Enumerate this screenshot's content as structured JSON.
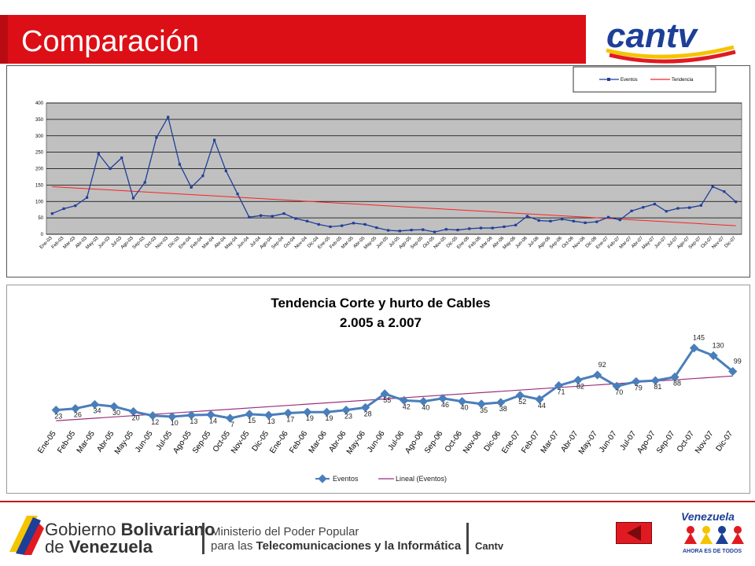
{
  "header": {
    "title": "Comparación",
    "logo_text": "cantv"
  },
  "colors": {
    "header_red": "#dd0f16",
    "plot_gray": "#c0c0c0",
    "series_blue": "#1f3f99",
    "trend_red": "#ff2020",
    "series2_blue": "#4a7ebb",
    "trend2_purple": "#9b2f7a"
  },
  "chart_data": [
    {
      "type": "line",
      "title": "",
      "legend": {
        "entries": [
          "Eventos",
          "Tendencia"
        ],
        "placement": "top-right"
      },
      "ylim": [
        0,
        400
      ],
      "yticks": [
        "0",
        "50",
        "100",
        "150",
        "200",
        "250",
        "300",
        "350",
        "400"
      ],
      "grid": true,
      "categories": [
        "Ene-03",
        "Feb-03",
        "Mar-03",
        "Abr-03",
        "May-03",
        "Jun-03",
        "Jul-03",
        "Ago-03",
        "Sep-03",
        "Oct-03",
        "Nov-03",
        "Dic-03",
        "Ene-04",
        "Feb-04",
        "Mar-04",
        "Abr-04",
        "May-04",
        "Jun-04",
        "Jul-04",
        "Ago-04",
        "Sep-04",
        "Oct-04",
        "Nov-04",
        "Dic-04",
        "Ene-05",
        "Feb-05",
        "Mar-05",
        "Abr-05",
        "May-05",
        "Jun-05",
        "Jul-05",
        "Ago-05",
        "Sep-05",
        "Oct-05",
        "Nov-05",
        "Dic-05",
        "Ene-06",
        "Feb-06",
        "Mar-06",
        "Abr-06",
        "May-06",
        "Jun-06",
        "Jul-06",
        "Ago-06",
        "Sep-06",
        "Oct-06",
        "Nov-06",
        "Dic-06",
        "Ene-07",
        "Feb-07",
        "Mar-07",
        "Abr-07",
        "May-07",
        "Jun-07",
        "Jul-07",
        "Ago-07",
        "Sep-07",
        "Oct-07",
        "Nov-07",
        "Dic-07"
      ],
      "series": [
        {
          "name": "Eventos",
          "values": [
            63,
            78,
            87,
            112,
            245,
            200,
            233,
            110,
            158,
            295,
            357,
            213,
            143,
            178,
            287,
            193,
            123,
            52,
            57,
            55,
            63,
            48,
            40,
            30,
            23,
            26,
            34,
            30,
            20,
            12,
            10,
            13,
            14,
            7,
            15,
            13,
            17,
            19,
            19,
            23,
            28,
            55,
            42,
            40,
            46,
            40,
            35,
            38,
            52,
            44,
            71,
            82,
            92,
            70,
            79,
            81,
            88,
            145,
            130,
            99
          ]
        },
        {
          "name": "Tendencia",
          "trend": [
            145,
            26
          ]
        }
      ]
    },
    {
      "type": "line",
      "title": "Tendencia Corte y hurto de Cables",
      "subtitle": "2.005 a 2.007",
      "legend": {
        "entries": [
          "Eventos",
          "Lineal (Eventos)"
        ],
        "placement": "bottom"
      },
      "categories": [
        "Ene-05",
        "Feb-05",
        "Mar-05",
        "Abr-05",
        "May-05",
        "Jun-05",
        "Jul-05",
        "Ago-05",
        "Sep-05",
        "Oct-05",
        "Nov-05",
        "Dic-05",
        "Ene-06",
        "Feb-06",
        "Mar-06",
        "Abr-06",
        "May-06",
        "Jun-06",
        "Jul-06",
        "Ago-06",
        "Sep-06",
        "Oct-06",
        "Nov-06",
        "Dic-06",
        "Ene-07",
        "Feb-07",
        "Mar-07",
        "Abr-07",
        "May-07",
        "Jun-07",
        "Jul-07",
        "Ago-07",
        "Sep-07",
        "Oct-07",
        "Nov-07",
        "Dic-07"
      ],
      "data_labels": [
        "23",
        "26",
        "34",
        "30",
        "20",
        "12",
        "10",
        "13",
        "14",
        "7",
        "15",
        "13",
        "17",
        "19",
        "19",
        "23",
        "28",
        "55",
        "42",
        "40",
        "46",
        "40",
        "35",
        "38",
        "52",
        "44",
        "71",
        "82",
        "92",
        "70",
        "79",
        "81",
        "88",
        "145",
        "130",
        "99"
      ],
      "series": [
        {
          "name": "Eventos",
          "values": [
            23,
            26,
            34,
            30,
            20,
            12,
            10,
            13,
            14,
            7,
            15,
            13,
            17,
            19,
            19,
            23,
            28,
            55,
            42,
            40,
            46,
            40,
            35,
            38,
            52,
            44,
            71,
            82,
            92,
            70,
            79,
            81,
            88,
            145,
            130,
            99
          ]
        },
        {
          "name": "Lineal (Eventos)",
          "trend": [
            2,
            90
          ]
        }
      ],
      "ylim": [
        -10,
        160
      ]
    }
  ],
  "footer": {
    "gob_line1_a": "Gobierno ",
    "gob_line1_b": "Bolivariano",
    "gob_line2_a": "de ",
    "gob_line2_b": "Venezuela",
    "ministry_line1": "Ministerio del Poder Popular",
    "ministry_line2_a": "para las ",
    "ministry_line2_b": "Telecomunicaciones y la Informática",
    "cantv": "Cantv",
    "venezuela_brand": "Venezuela",
    "venezuela_slogan": "AHORA ES DE TODOS"
  }
}
